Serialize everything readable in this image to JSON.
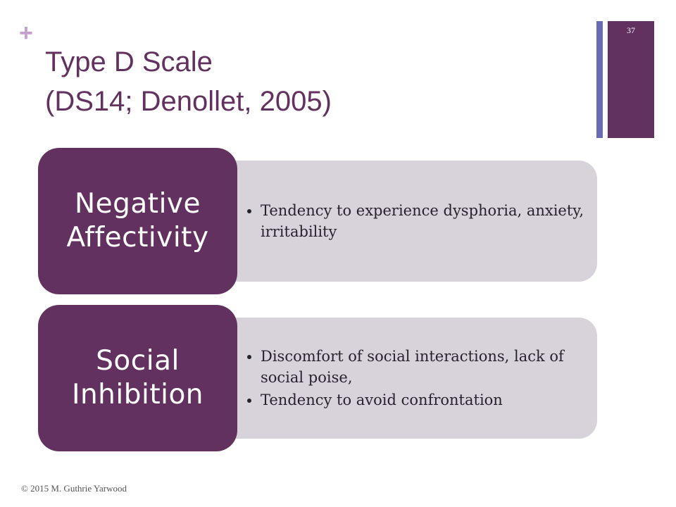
{
  "slide": {
    "plus_glyph": "+",
    "title_line1": "Type D Scale",
    "title_line2": "(DS14; Denollet, 2005)",
    "slide_number": "37",
    "footer": "© 2015 M. Guthrie Yarwood",
    "accent_color": "#62315f",
    "secondary_accent_color": "#6a6bb0"
  },
  "diagram": {
    "items": [
      {
        "label_line1": "Negative",
        "label_line2": "Affectivity",
        "bullets": [
          "Tendency to experience dysphoria, anxiety, irritability"
        ]
      },
      {
        "label_line1": "Social",
        "label_line2": "Inhibition",
        "bullets": [
          "Discomfort of social interactions, lack of social poise,",
          "Tendency to avoid confrontation"
        ]
      }
    ]
  }
}
